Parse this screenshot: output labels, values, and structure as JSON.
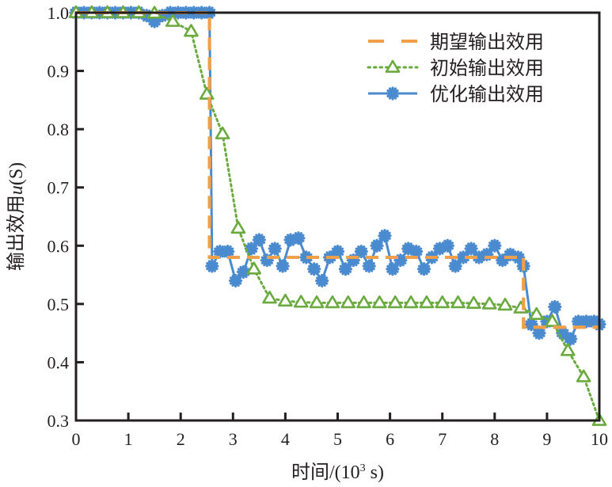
{
  "chart_data": {
    "type": "line",
    "title": "",
    "xlabel": "时间/(10³ s)",
    "xlabel_parts": {
      "main": "时间/(10",
      "sup": "3",
      "tail": " s)"
    },
    "ylabel": "输出效用u(S)",
    "ylabel_parts": {
      "main": "输出效用",
      "var": "u",
      "tail": "(S)"
    },
    "xlim": [
      0,
      10
    ],
    "ylim": [
      0.3,
      1.0
    ],
    "xticks": [
      "0",
      "1",
      "2",
      "3",
      "4",
      "5",
      "6",
      "7",
      "8",
      "9",
      "10"
    ],
    "yticks": [
      "0.3",
      "0.4",
      "0.5",
      "0.6",
      "0.7",
      "0.8",
      "0.9",
      "1.0"
    ],
    "grid": false,
    "legend_position": "top-right",
    "series": [
      {
        "name": "期望输出效用",
        "color": "#f0a04b",
        "style": "dashed",
        "marker": "none",
        "x": [
          0,
          2.55,
          2.55,
          8.55,
          8.55,
          10
        ],
        "y": [
          1.0,
          1.0,
          0.58,
          0.58,
          0.46,
          0.46
        ]
      },
      {
        "name": "初始输出效用",
        "color": "#6aaa3f",
        "style": "dotted",
        "marker": "triangle",
        "x": [
          0,
          0.3,
          0.6,
          0.9,
          1.2,
          1.5,
          1.85,
          2.2,
          2.5,
          2.8,
          3.1,
          3.4,
          3.7,
          4.0,
          4.3,
          4.6,
          4.9,
          5.2,
          5.5,
          5.8,
          6.1,
          6.4,
          6.7,
          7.0,
          7.3,
          7.6,
          7.9,
          8.2,
          8.5,
          8.8,
          9.1,
          9.4,
          9.7,
          10.0
        ],
        "y": [
          1.0,
          1.0,
          1.0,
          1.0,
          1.0,
          0.999,
          0.985,
          0.968,
          0.86,
          0.792,
          0.63,
          0.56,
          0.51,
          0.505,
          0.503,
          0.502,
          0.502,
          0.502,
          0.502,
          0.502,
          0.502,
          0.502,
          0.502,
          0.502,
          0.502,
          0.501,
          0.5,
          0.498,
          0.493,
          0.482,
          0.47,
          0.42,
          0.375,
          0.3
        ]
      },
      {
        "name": "优化输出效用",
        "color": "#4a8bd0",
        "style": "solid",
        "marker": "asterisk",
        "x": [
          0,
          0.15,
          0.3,
          0.45,
          0.6,
          0.75,
          0.9,
          1.05,
          1.2,
          1.35,
          1.5,
          1.65,
          1.8,
          1.95,
          2.1,
          2.25,
          2.4,
          2.55,
          2.6,
          2.75,
          2.9,
          3.05,
          3.2,
          3.35,
          3.5,
          3.65,
          3.8,
          3.95,
          4.1,
          4.25,
          4.4,
          4.55,
          4.7,
          4.85,
          5.0,
          5.15,
          5.3,
          5.45,
          5.6,
          5.75,
          5.9,
          6.05,
          6.2,
          6.35,
          6.5,
          6.65,
          6.8,
          6.95,
          7.1,
          7.25,
          7.4,
          7.55,
          7.7,
          7.85,
          8.0,
          8.15,
          8.3,
          8.45,
          8.55,
          8.7,
          8.85,
          9.0,
          9.15,
          9.3,
          9.45,
          9.6,
          9.75,
          9.9,
          10.0
        ],
        "y": [
          1.0,
          1.0,
          1.0,
          1.0,
          1.0,
          1.0,
          1.0,
          1.0,
          1.0,
          0.995,
          0.985,
          0.995,
          1.0,
          1.0,
          1.0,
          1.0,
          1.0,
          1.0,
          0.565,
          0.59,
          0.59,
          0.54,
          0.555,
          0.595,
          0.61,
          0.575,
          0.595,
          0.565,
          0.61,
          0.613,
          0.58,
          0.56,
          0.54,
          0.58,
          0.59,
          0.56,
          0.575,
          0.59,
          0.565,
          0.6,
          0.617,
          0.56,
          0.575,
          0.595,
          0.59,
          0.56,
          0.58,
          0.595,
          0.6,
          0.565,
          0.58,
          0.595,
          0.58,
          0.585,
          0.6,
          0.575,
          0.585,
          0.58,
          0.565,
          0.465,
          0.45,
          0.47,
          0.495,
          0.45,
          0.44,
          0.47,
          0.47,
          0.47,
          0.465
        ]
      }
    ]
  }
}
